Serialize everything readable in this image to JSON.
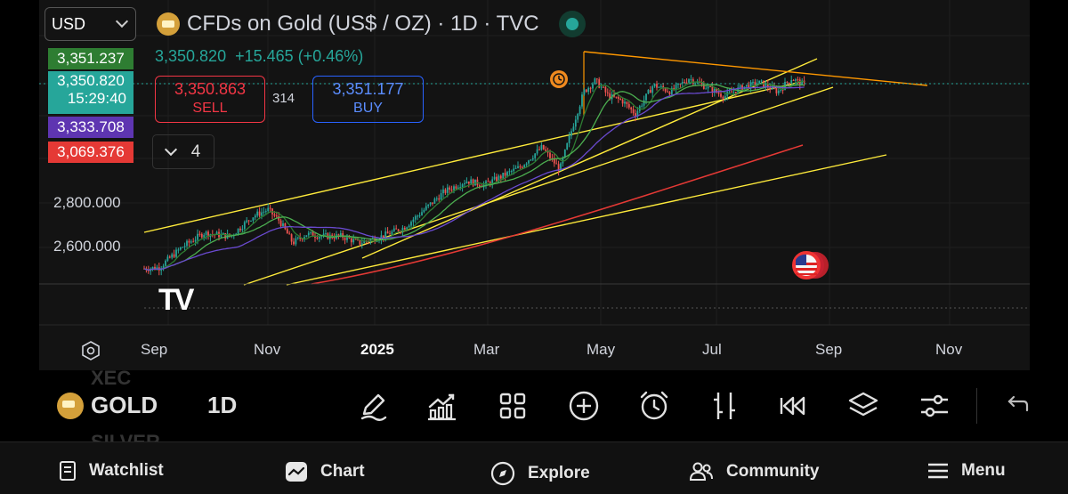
{
  "currency_select": {
    "value": "USD"
  },
  "symbol": {
    "title": "CFDs on Gold (US$ / OZ) · 1D · TVC"
  },
  "quote": {
    "last": "3,350.820",
    "change": "+15.465",
    "change_pct": "(+0.46%)"
  },
  "sell": {
    "price": "3,350.863",
    "label": "SELL"
  },
  "buy": {
    "price": "3,351.177",
    "label": "BUY"
  },
  "spread": "314",
  "indicators_toggle": {
    "count": "4"
  },
  "price_tags": [
    {
      "value": "3,351.237",
      "color": "#2e7d32"
    },
    {
      "value": "3,350.820",
      "sub": "15:29:40",
      "color": "#26a69a"
    },
    {
      "value": "3,333.708",
      "color": "#5e35b1"
    },
    {
      "value": "3,069.376",
      "color": "#e53935"
    }
  ],
  "y_axis_labels": [
    "2,800.000",
    "2,600.000"
  ],
  "x_axis_labels": [
    "Sep",
    "Nov",
    "2025",
    "Mar",
    "May",
    "Jul",
    "Sep",
    "Nov"
  ],
  "chart_data": {
    "type": "candlestick",
    "x_ticks": [
      "Sep",
      "Nov",
      "2025",
      "Mar",
      "May",
      "Jul",
      "Sep",
      "Nov"
    ],
    "y_ticks": [
      2600,
      2800
    ],
    "last_price": 3350.82,
    "moving_averages": [
      {
        "color": "#2e7d32",
        "last": 3351.237
      },
      {
        "color": "#5e35b1",
        "last": 3333.708
      },
      {
        "color": "#e53935",
        "last": 3069.376
      }
    ]
  },
  "toolbar": {
    "symbol_prev": "XEC",
    "symbol": "GOLD",
    "symbol_next": "SILVER",
    "interval": "1D",
    "tools": [
      "pencil-icon",
      "chart-indicators-icon",
      "grid-icon",
      "plus-circle-icon",
      "alarm-icon",
      "bar-settings-icon",
      "replay-icon",
      "layers-icon",
      "sliders-icon",
      "undo-icon"
    ]
  },
  "nav": {
    "watchlist": "Watchlist",
    "chart": "Chart",
    "explore": "Explore",
    "community": "Community",
    "menu": "Menu"
  },
  "tv_logo": "TV"
}
